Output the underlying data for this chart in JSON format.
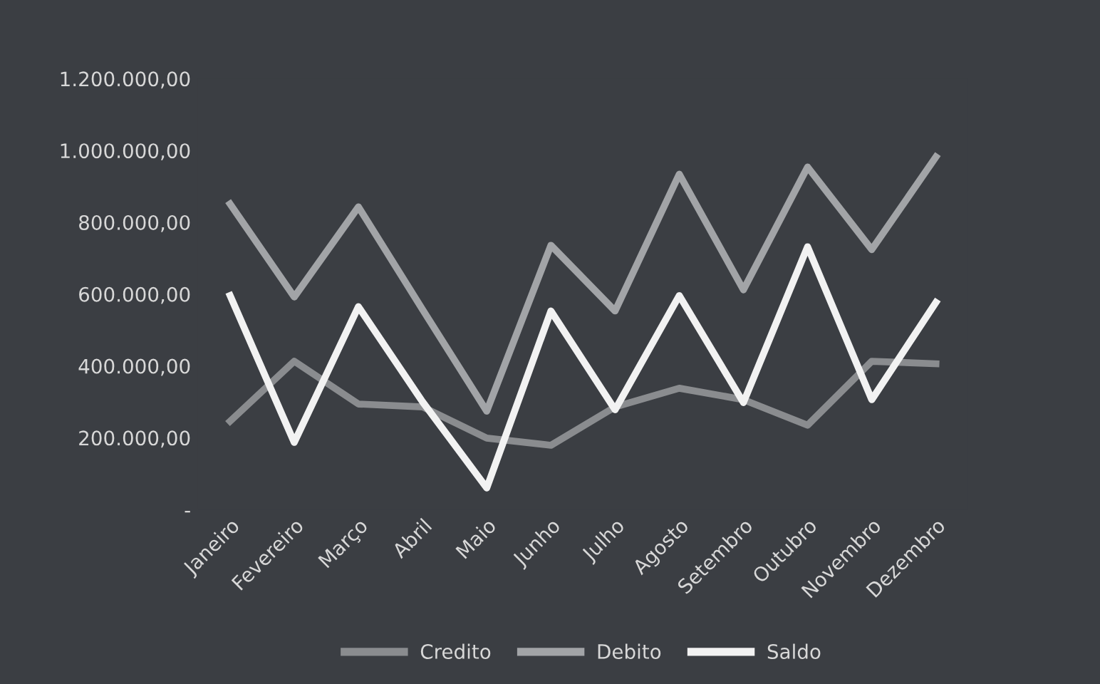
{
  "chart_data": {
    "type": "line",
    "categories": [
      "Janeiro",
      "Fevereiro",
      "Março",
      "Abril",
      "Maio",
      "Junho",
      "Julho",
      "Agosto",
      "Setembro",
      "Outubro",
      "Novembro",
      "Dezembro"
    ],
    "series": [
      {
        "name": "Credito",
        "color": "#8a8c8f",
        "values": [
          246000,
          413000,
          294000,
          286000,
          199000,
          179000,
          286000,
          338000,
          306000,
          235000,
          413000,
          406000
        ]
      },
      {
        "name": "Debito",
        "color": "#a2a4a7",
        "values": [
          851000,
          592000,
          843000,
          557000,
          274000,
          736000,
          553000,
          934000,
          612000,
          954000,
          724000,
          982000
        ]
      },
      {
        "name": "Saldo",
        "color": "#f2f2f2",
        "values": [
          596000,
          187000,
          565000,
          300000,
          60000,
          553000,
          278000,
          596000,
          298000,
          732000,
          306000,
          577000
        ]
      }
    ],
    "ylim": [
      0,
      1200000
    ],
    "yticks": [
      {
        "value": 0,
        "label": "-"
      },
      {
        "value": 200000,
        "label": "200.000,00"
      },
      {
        "value": 400000,
        "label": "400.000,00"
      },
      {
        "value": 600000,
        "label": "600.000,00"
      },
      {
        "value": 800000,
        "label": "800.000,00"
      },
      {
        "value": 1000000,
        "label": "1.000.000,00"
      },
      {
        "value": 1200000,
        "label": "1.200.000,00"
      }
    ],
    "grid": false,
    "legend": "bottom",
    "marker": "none",
    "line_style": "solid"
  }
}
